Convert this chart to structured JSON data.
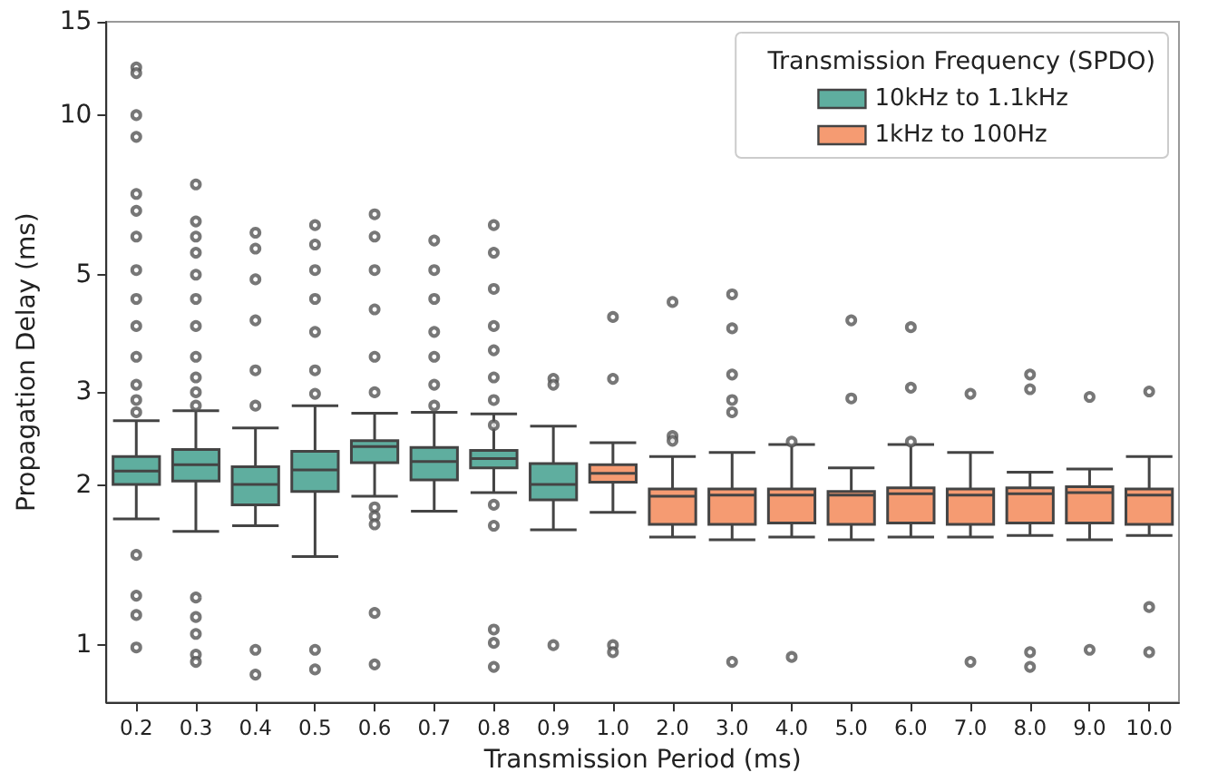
{
  "chart_data": {
    "type": "box",
    "xlabel": "Transmission Period (ms)",
    "ylabel": "Propagation Delay (ms)",
    "legend_title": "Transmission Frequency (SPDO)",
    "categories": [
      "0.2",
      "0.3",
      "0.4",
      "0.5",
      "0.6",
      "0.7",
      "0.8",
      "0.9",
      "1.0",
      "2.0",
      "3.0",
      "4.0",
      "5.0",
      "6.0",
      "7.0",
      "8.0",
      "9.0",
      "10.0"
    ],
    "series": [
      {
        "name": "10kHz to 1.1kHz",
        "color": "#5fae9f",
        "boxes": [
          {
            "low": 1.73,
            "q1": 2.01,
            "median": 2.13,
            "q3": 2.27,
            "high": 2.65,
            "outliers": [
              12.3,
              12.0,
              10,
              9.1,
              7.1,
              6.6,
              5.9,
              5.1,
              4.5,
              4.0,
              3.5,
              3.1,
              2.9,
              2.75,
              1.48,
              1.24,
              1.14,
              0.99
            ]
          },
          {
            "low": 1.64,
            "q1": 2.04,
            "median": 2.19,
            "q3": 2.34,
            "high": 2.77,
            "outliers": [
              7.4,
              6.3,
              5.9,
              5.5,
              5.0,
              4.5,
              4.0,
              3.5,
              3.2,
              3.0,
              2.83,
              1.23,
              1.13,
              1.05,
              0.96,
              0.93
            ]
          },
          {
            "low": 1.68,
            "q1": 1.84,
            "median": 2.01,
            "q3": 2.17,
            "high": 2.57,
            "outliers": [
              6.0,
              5.6,
              4.9,
              4.1,
              3.3,
              2.83,
              0.98,
              0.88
            ]
          },
          {
            "low": 1.47,
            "q1": 1.95,
            "median": 2.14,
            "q3": 2.32,
            "high": 2.83,
            "outliers": [
              6.2,
              5.7,
              5.1,
              4.5,
              3.9,
              3.3,
              2.98,
              0.98,
              0.9
            ]
          },
          {
            "low": 1.91,
            "q1": 2.21,
            "median": 2.37,
            "q3": 2.43,
            "high": 2.74,
            "outliers": [
              6.5,
              5.9,
              5.1,
              4.3,
              3.5,
              3.0,
              1.82,
              1.75,
              1.69,
              1.15,
              0.92
            ]
          },
          {
            "low": 1.79,
            "q1": 2.05,
            "median": 2.22,
            "q3": 2.36,
            "high": 2.75,
            "outliers": [
              5.8,
              5.1,
              4.5,
              3.9,
              3.5,
              3.1,
              2.83
            ]
          },
          {
            "low": 1.94,
            "q1": 2.16,
            "median": 2.25,
            "q3": 2.33,
            "high": 2.73,
            "outliers": [
              6.2,
              5.5,
              4.7,
              4.0,
              3.6,
              3.2,
              2.9,
              2.6,
              1.84,
              1.68,
              1.07,
              1.01,
              0.91
            ]
          },
          {
            "low": 1.65,
            "q1": 1.88,
            "median": 2.01,
            "q3": 2.2,
            "high": 2.59,
            "outliers": [
              3.18,
              3.1,
              1.0
            ]
          },
          null,
          null,
          null,
          null,
          null,
          null,
          null,
          null,
          null,
          null
        ]
      },
      {
        "name": "1kHz to 100Hz",
        "color": "#f59b72",
        "boxes": [
          null,
          null,
          null,
          null,
          null,
          null,
          null,
          null,
          {
            "low": 1.78,
            "q1": 2.03,
            "median": 2.11,
            "q3": 2.19,
            "high": 2.41,
            "outliers": [
              4.16,
              3.18,
              1.0,
              0.97
            ]
          },
          {
            "low": 1.6,
            "q1": 1.69,
            "median": 1.91,
            "q3": 1.97,
            "high": 2.27,
            "outliers": [
              4.44,
              2.48,
              2.43
            ]
          },
          {
            "low": 1.58,
            "q1": 1.69,
            "median": 1.92,
            "q3": 1.97,
            "high": 2.31,
            "outliers": [
              4.59,
              3.96,
              3.24,
              2.9,
              2.75,
              0.93
            ]
          },
          {
            "low": 1.6,
            "q1": 1.7,
            "median": 1.92,
            "q3": 1.97,
            "high": 2.39,
            "outliers": [
              2.42,
              0.95
            ]
          },
          {
            "low": 1.58,
            "q1": 1.69,
            "median": 1.92,
            "q3": 1.95,
            "high": 2.16,
            "outliers": [
              4.1,
              2.92
            ]
          },
          {
            "low": 1.6,
            "q1": 1.7,
            "median": 1.93,
            "q3": 1.98,
            "high": 2.39,
            "outliers": [
              3.98,
              3.06,
              2.42
            ]
          },
          {
            "low": 1.6,
            "q1": 1.69,
            "median": 1.92,
            "q3": 1.97,
            "high": 2.31,
            "outliers": [
              2.98,
              0.93
            ]
          },
          {
            "low": 1.61,
            "q1": 1.7,
            "median": 1.93,
            "q3": 1.98,
            "high": 2.12,
            "outliers": [
              3.24,
              3.04,
              0.97,
              0.91
            ]
          },
          {
            "low": 1.58,
            "q1": 1.7,
            "median": 1.94,
            "q3": 1.99,
            "high": 2.15,
            "outliers": [
              2.94,
              0.98
            ]
          },
          {
            "low": 1.61,
            "q1": 1.69,
            "median": 1.92,
            "q3": 1.97,
            "high": 2.27,
            "outliers": [
              3.01,
              1.18,
              0.97
            ]
          }
        ]
      }
    ],
    "ylim": [
      0.78,
      15
    ],
    "yticks": [
      1,
      2,
      3,
      5,
      10,
      15
    ],
    "log": true,
    "legend": "top right",
    "grid": false,
    "marker": "circle"
  }
}
